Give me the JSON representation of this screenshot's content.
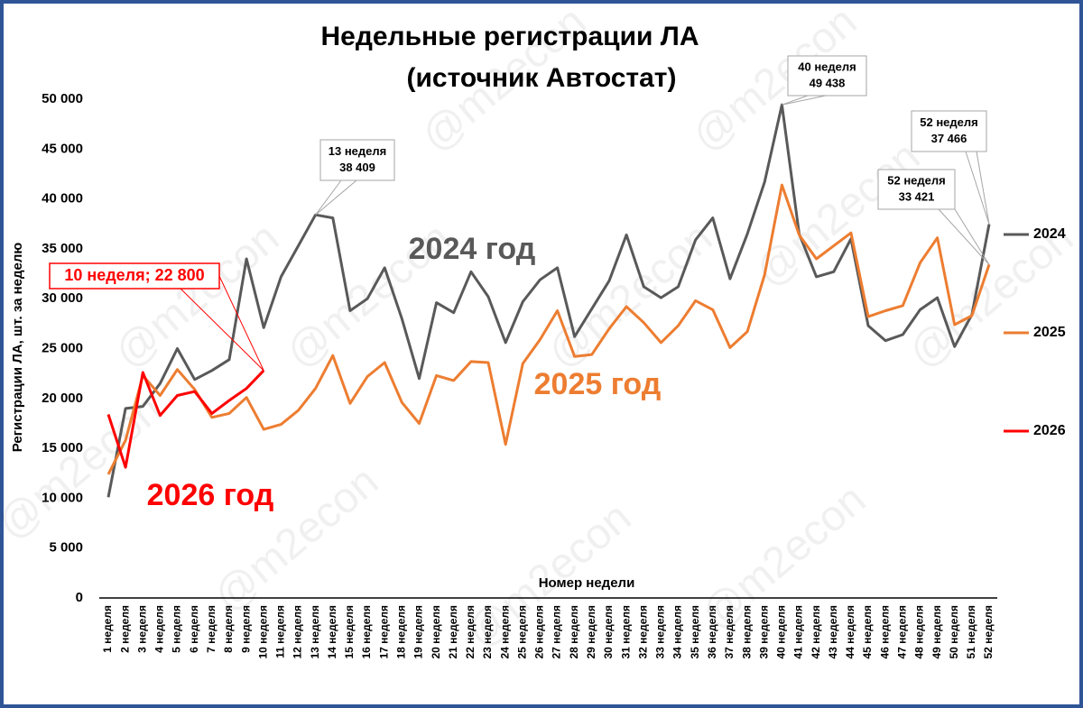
{
  "chart_data": {
    "type": "line",
    "title": [
      "Недельные регистрации ЛА",
      "(источник Автостат)"
    ],
    "x_label": "Номер недели",
    "y_label": "Регистрации ЛА, шт. за неделю",
    "watermark": "@m2econ",
    "categories": [
      "1 неделя",
      "2 неделя",
      "3 неделя",
      "4 неделя",
      "5 неделя",
      "6 неделя",
      "7 неделя",
      "8 неделя",
      "9 неделя",
      "10 неделя",
      "11 неделя",
      "12 неделя",
      "13 неделя",
      "14 неделя",
      "15 неделя",
      "16 неделя",
      "17 неделя",
      "18 неделя",
      "19 неделя",
      "20 неделя",
      "21 неделя",
      "22 неделя",
      "23 неделя",
      "24 неделя",
      "25 неделя",
      "26 неделя",
      "27 неделя",
      "28 неделя",
      "29 неделя",
      "30 неделя",
      "31 неделя",
      "32 неделя",
      "33 неделя",
      "34 неделя",
      "35 неделя",
      "36 неделя",
      "37 неделя",
      "38 неделя",
      "39 неделя",
      "40 неделя",
      "41 неделя",
      "42 неделя",
      "43 неделя",
      "44 неделя",
      "45 неделя",
      "46 неделя",
      "47 неделя",
      "48 неделя",
      "49 неделя",
      "50 неделя",
      "51 неделя",
      "52 неделя"
    ],
    "series": [
      {
        "name": "2024",
        "color": "#595959",
        "label": "2024 год",
        "values": [
          10100,
          19000,
          19200,
          21500,
          25000,
          21900,
          22800,
          23900,
          34000,
          27100,
          32200,
          35300,
          38409,
          38100,
          28800,
          30000,
          33100,
          28000,
          22000,
          29600,
          28600,
          32700,
          30200,
          25600,
          29700,
          31900,
          33100,
          26200,
          29000,
          31800,
          36400,
          31200,
          30100,
          31200,
          35900,
          38100,
          32000,
          36500,
          41700,
          49438,
          36500,
          32200,
          32700,
          36000,
          27300,
          25800,
          26400,
          28900,
          30100,
          25200,
          28400,
          37466
        ]
      },
      {
        "name": "2025",
        "color": "#ed7d31",
        "label": "2025 год",
        "values": [
          12400,
          15800,
          22300,
          20300,
          22900,
          20900,
          18100,
          18500,
          20100,
          16900,
          17400,
          18800,
          21000,
          24300,
          19500,
          22200,
          23600,
          19600,
          17500,
          22300,
          21800,
          23700,
          23600,
          15400,
          23500,
          25900,
          28800,
          24200,
          24400,
          27000,
          29200,
          27600,
          25600,
          27300,
          29800,
          28900,
          25100,
          26700,
          32400,
          41400,
          36400,
          34000,
          35300,
          36600,
          28200,
          28800,
          29300,
          33600,
          36100,
          27400,
          28300,
          33421
        ]
      },
      {
        "name": "2026",
        "color": "#ff0000",
        "label": "2026 год",
        "values": [
          18400,
          13100,
          22600,
          18300,
          20300,
          20700,
          18500,
          19800,
          21000,
          22800,
          null,
          null,
          null,
          null,
          null,
          null,
          null,
          null,
          null,
          null,
          null,
          null,
          null,
          null,
          null,
          null,
          null,
          null,
          null,
          null,
          null,
          null,
          null,
          null,
          null,
          null,
          null,
          null,
          null,
          null,
          null,
          null,
          null,
          null,
          null,
          null,
          null,
          null,
          null,
          null,
          null,
          null
        ]
      }
    ],
    "annotations": [
      {
        "lines": [
          "13 неделя",
          "38 409"
        ]
      },
      {
        "lines": [
          "40 неделя",
          "49 438"
        ]
      },
      {
        "lines": [
          "52 неделя",
          "37 466"
        ]
      },
      {
        "lines": [
          "52 неделя",
          "33 421"
        ]
      },
      {
        "lines": [
          "10 неделя;  22 800"
        ]
      }
    ],
    "ylim": [
      0,
      50000
    ],
    "yticks": [
      0,
      {
        "value": 5000,
        "label": "5 000"
      },
      {
        "value": 10000,
        "label": "10 000"
      },
      {
        "value": 15000,
        "label": "15 000"
      },
      {
        "value": 20000,
        "label": "20 000"
      },
      {
        "value": 25000,
        "label": "25 000"
      },
      {
        "value": 30000,
        "label": "30 000"
      },
      {
        "value": 35000,
        "label": "35 000"
      },
      {
        "value": 40000,
        "label": "40 000"
      },
      {
        "value": 45000,
        "label": "45 000"
      },
      {
        "value": 50000,
        "label": "50 000"
      }
    ],
    "grid": false,
    "legend": "right"
  }
}
